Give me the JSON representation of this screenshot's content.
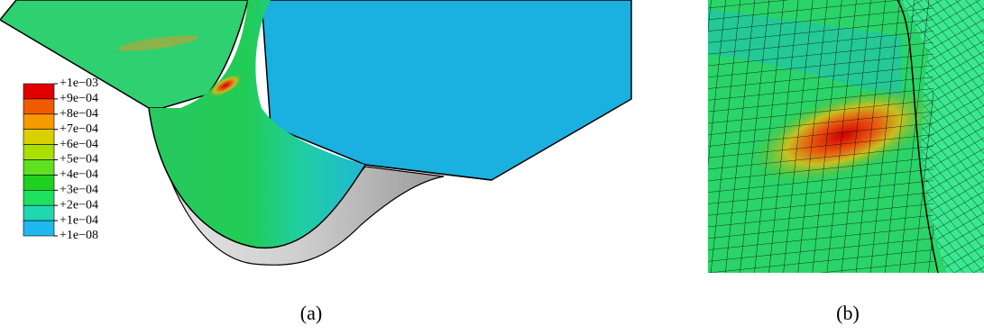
{
  "legend": {
    "labels": [
      "+1e−03",
      "+9e−04",
      "+8e−04",
      "+7e−04",
      "+6e−04",
      "+5e−04",
      "+4e−04",
      "+3e−04",
      "+2e−04",
      "+1e−04",
      "+1e−08"
    ]
  },
  "captions": [
    "(a)",
    "(b)"
  ]
}
